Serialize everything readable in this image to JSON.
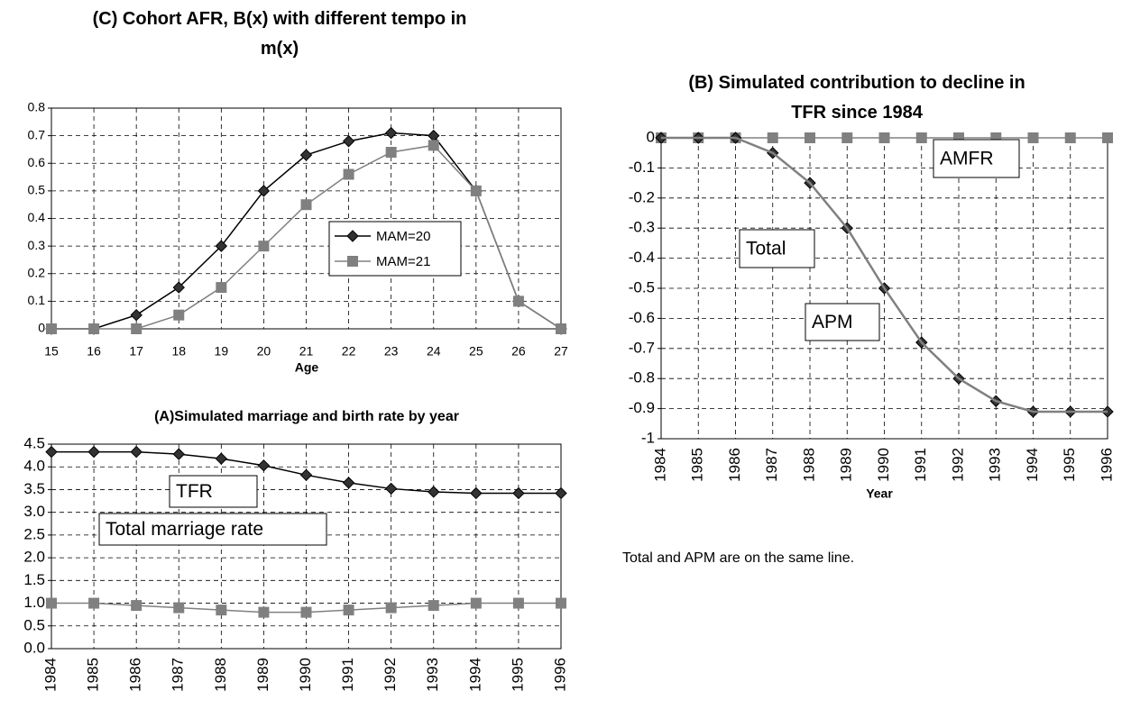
{
  "chart_data": [
    {
      "type": "line",
      "title": "(C) Cohort AFR, B(x) with different tempo in m(x)",
      "xlabel": "Age",
      "x": [
        15,
        16,
        17,
        18,
        19,
        20,
        21,
        22,
        23,
        24,
        25,
        26,
        27
      ],
      "xlim": [
        15,
        27
      ],
      "xticks": [
        15,
        16,
        17,
        18,
        19,
        20,
        21,
        22,
        23,
        24,
        25,
        26,
        27
      ],
      "ylim": [
        0,
        0.8
      ],
      "yticks": [
        0,
        0.1,
        0.2,
        0.3,
        0.4,
        0.5,
        0.6,
        0.7,
        0.8
      ],
      "grid": true,
      "legend": "right",
      "series": [
        {
          "name": "MAM=20",
          "color": "#000000",
          "marker": "diamond",
          "values": [
            0,
            0,
            0.05,
            0.15,
            0.3,
            0.5,
            0.63,
            0.68,
            0.71,
            0.7,
            0.5,
            0.1,
            0
          ]
        },
        {
          "name": "MAM=21",
          "color": "#808080",
          "marker": "square",
          "values": [
            0,
            0,
            0,
            0.05,
            0.15,
            0.3,
            0.45,
            0.56,
            0.64,
            0.665,
            0.5,
            0.1,
            0
          ]
        }
      ]
    },
    {
      "type": "line",
      "title": "(A)Simulated marriage and birth rate by year",
      "categories": [
        "1984",
        "1985",
        "1986",
        "1987",
        "1988",
        "1989",
        "1990",
        "1991",
        "1992",
        "1993",
        "1994",
        "1995",
        "1996"
      ],
      "ylim": [
        0,
        4.5
      ],
      "yticks": [
        {
          "value": 0,
          "label": "0.0"
        },
        0.5,
        {
          "value": 1,
          "label": "1.0"
        },
        1.5,
        {
          "value": 2,
          "label": "2.0"
        },
        2.5,
        {
          "value": 3,
          "label": "3.0"
        },
        3.5,
        {
          "value": 4,
          "label": "4.0"
        },
        4.5
      ],
      "grid": true,
      "legend": "inline",
      "series": [
        {
          "name": "TFR",
          "color": "#000000",
          "marker": "diamond",
          "values": [
            4.33,
            4.33,
            4.33,
            4.28,
            4.18,
            4.03,
            3.82,
            3.65,
            3.52,
            3.45,
            3.42,
            3.42,
            3.42
          ]
        },
        {
          "name": "Total marriage rate",
          "color": "#808080",
          "marker": "square",
          "values": [
            1,
            1,
            0.95,
            0.9,
            0.85,
            0.8,
            0.8,
            0.85,
            0.9,
            0.95,
            1,
            1,
            1
          ]
        }
      ]
    },
    {
      "type": "line",
      "title": "(B) Simulated contribution to decline in TFR since 1984",
      "xlabel": "Year",
      "note": "Total and APM are on the same line.",
      "categories": [
        "1984",
        "1985",
        "1986",
        "1987",
        "1988",
        "1989",
        "1990",
        "1991",
        "1992",
        "1993",
        "1994",
        "1995",
        "1996"
      ],
      "ylim": [
        -1,
        0
      ],
      "yticks": [
        0,
        -0.1,
        -0.2,
        -0.3,
        -0.4,
        -0.5,
        -0.6,
        -0.7,
        -0.8,
        -0.9,
        -1
      ],
      "grid": true,
      "legend": "inline",
      "series": [
        {
          "name": "AMFR",
          "color": "#808080",
          "marker": "square",
          "values": [
            0,
            0,
            0,
            0,
            0,
            0,
            0,
            0,
            0,
            0,
            0,
            0,
            0
          ]
        },
        {
          "name": "Total",
          "color": "#000000",
          "marker": "diamond",
          "values": [
            0,
            0,
            0,
            -0.05,
            -0.15,
            -0.3,
            -0.5,
            -0.68,
            -0.8,
            -0.875,
            -0.91,
            -0.91,
            -0.91
          ]
        },
        {
          "name": "APM",
          "color": "#808080",
          "marker": "none",
          "values": [
            0,
            0,
            0,
            -0.05,
            -0.15,
            -0.3,
            -0.5,
            -0.68,
            -0.8,
            -0.875,
            -0.91,
            -0.91,
            -0.91
          ]
        }
      ]
    }
  ]
}
